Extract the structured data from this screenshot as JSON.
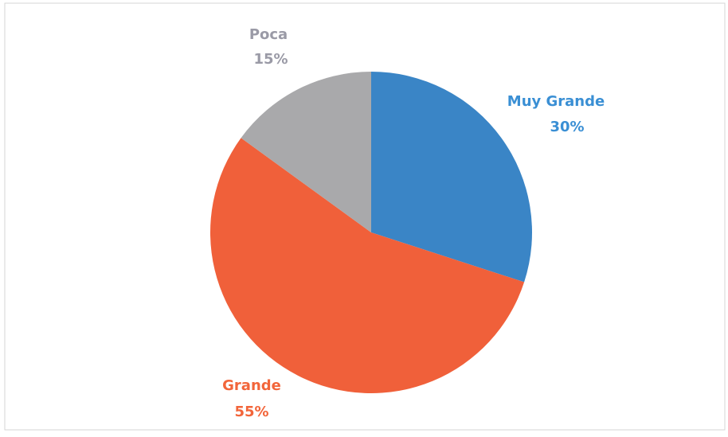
{
  "chart_data": {
    "type": "pie",
    "categories": [
      "Muy Grande",
      "Grande",
      "Poca"
    ],
    "values": [
      30,
      55,
      15
    ],
    "value_labels": [
      "30%",
      "55%",
      "15%"
    ],
    "colors": [
      "#3a85c6",
      "#f0603a",
      "#a9a9ab"
    ],
    "label_colors": [
      "#3a8fd4",
      "#f2653a",
      "#9a9aa6"
    ]
  }
}
